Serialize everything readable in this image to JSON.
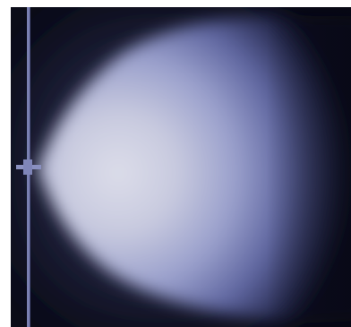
{
  "image": {
    "subject": "",
    "colors": {
      "background": "#0b0c18",
      "glow_outer": "#3c4272",
      "glow_mid": "#8e95c6",
      "glow_core": "#dadbe9",
      "rod": "#7a80b2"
    }
  }
}
